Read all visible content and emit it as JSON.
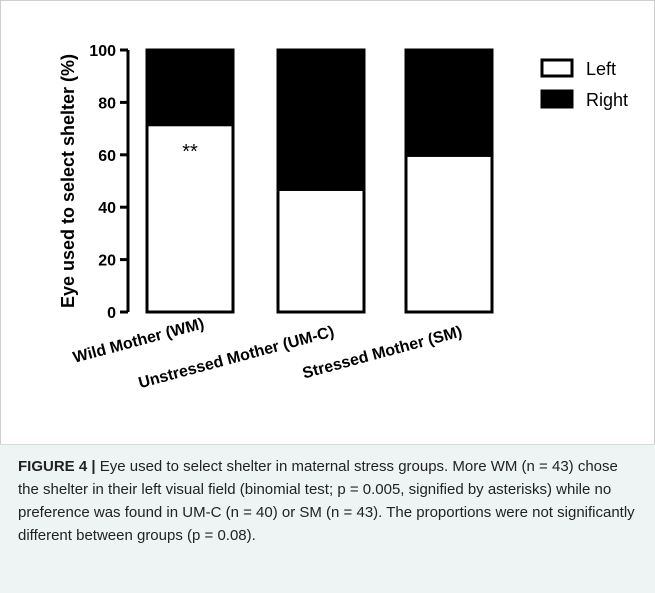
{
  "chart_data": {
    "type": "bar",
    "stacked": true,
    "categories": [
      "Wild Mother (WM)",
      "Unstressed Mother (UM-C)",
      "Stressed Mother (SM)"
    ],
    "series": [
      {
        "name": "Left",
        "values": [
          71.5,
          46.8,
          59.8
        ],
        "color": "#ffffff"
      },
      {
        "name": "Right",
        "values": [
          28.5,
          53.2,
          40.2
        ],
        "color": "#000000"
      }
    ],
    "ylabel": "Eye used to select shelter (%)",
    "xlabel": "",
    "ylim": [
      0,
      100
    ],
    "yticks": [
      0,
      20,
      40,
      60,
      80,
      100
    ],
    "grid": false,
    "legend_position": "top-right",
    "annotations": [
      {
        "category": "Wild Mother (WM)",
        "text": "**"
      }
    ]
  },
  "caption": {
    "label": "FIGURE 4 |",
    "text": "Eye used to select shelter in maternal stress groups. More WM (n = 43) chose the shelter in their left visual field (binomial test; p = 0.005, signified by asterisks) while no preference was found in UM-C (n = 40) or SM (n = 43). The proportions were not significantly different between groups (p = 0.08)."
  }
}
